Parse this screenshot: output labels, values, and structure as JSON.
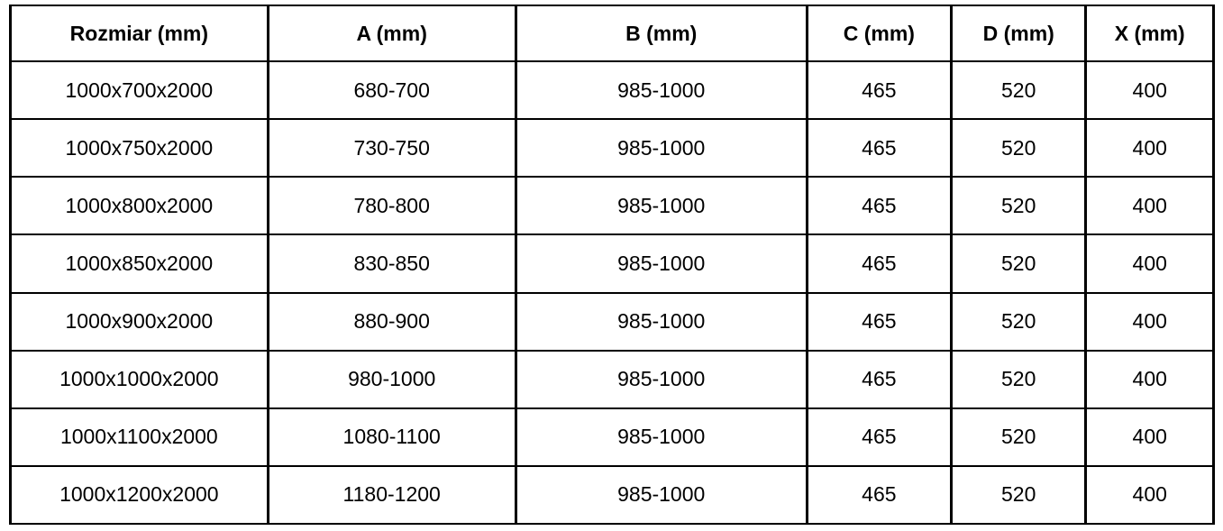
{
  "table": {
    "headers": [
      "Rozmiar (mm)",
      "A (mm)",
      "B (mm)",
      "C (mm)",
      "D (mm)",
      "X (mm)"
    ],
    "rows": [
      [
        "1000x700x2000",
        "680-700",
        "985-1000",
        "465",
        "520",
        "400"
      ],
      [
        "1000x750x2000",
        "730-750",
        "985-1000",
        "465",
        "520",
        "400"
      ],
      [
        "1000x800x2000",
        "780-800",
        "985-1000",
        "465",
        "520",
        "400"
      ],
      [
        "1000x850x2000",
        "830-850",
        "985-1000",
        "465",
        "520",
        "400"
      ],
      [
        "1000x900x2000",
        "880-900",
        "985-1000",
        "465",
        "520",
        "400"
      ],
      [
        "1000x1000x2000",
        "980-1000",
        "985-1000",
        "465",
        "520",
        "400"
      ],
      [
        "1000x1100x2000",
        "1080-1100",
        "985-1000",
        "465",
        "520",
        "400"
      ],
      [
        "1000x1200x2000",
        "1180-1200",
        "985-1000",
        "465",
        "520",
        "400"
      ]
    ],
    "colors": {
      "border": "#000000",
      "text": "#000000",
      "background": "#ffffff"
    }
  }
}
